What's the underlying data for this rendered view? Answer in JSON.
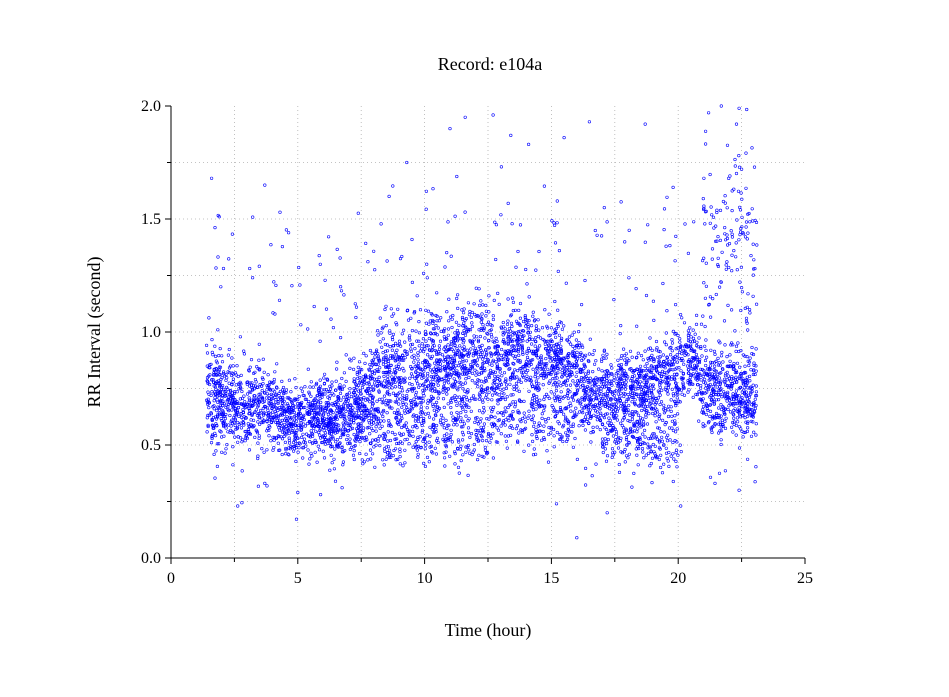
{
  "chart_data": {
    "type": "scatter",
    "title": "Record:  e104a",
    "xlabel": "Time (hour)",
    "ylabel": "RR Interval (second)",
    "xlim": [
      0,
      25
    ],
    "ylim": [
      0.0,
      2.0
    ],
    "x_ticks": [
      "0",
      "5",
      "10",
      "15",
      "20",
      "25"
    ],
    "y_ticks": [
      "0.0",
      "0.5",
      "1.0",
      "1.5",
      "2.0"
    ],
    "x_tick_values": [
      0,
      5,
      10,
      15,
      20,
      25
    ],
    "y_tick_values": [
      0.0,
      0.5,
      1.0,
      1.5,
      2.0
    ],
    "grid": true,
    "marker_color": "#0000ff",
    "marker": "open-circle",
    "x_range_of_data": [
      1.4,
      23.1
    ],
    "trend": [
      {
        "x": 1.4,
        "y": 0.72,
        "spread": 0.14
      },
      {
        "x": 2.0,
        "y": 0.7,
        "spread": 0.15
      },
      {
        "x": 2.5,
        "y": 0.68,
        "spread": 0.12
      },
      {
        "x": 3.0,
        "y": 0.66,
        "spread": 0.1
      },
      {
        "x": 3.5,
        "y": 0.7,
        "spread": 0.12
      },
      {
        "x": 4.0,
        "y": 0.66,
        "spread": 0.1
      },
      {
        "x": 4.5,
        "y": 0.62,
        "spread": 0.12
      },
      {
        "x": 5.0,
        "y": 0.6,
        "spread": 0.1
      },
      {
        "x": 6.0,
        "y": 0.64,
        "spread": 0.1
      },
      {
        "x": 7.0,
        "y": 0.68,
        "spread": 0.11
      },
      {
        "x": 7.8,
        "y": 0.72,
        "spread": 0.12
      },
      {
        "x": 8.0,
        "y": 0.8,
        "spread": 0.15
      },
      {
        "x": 9.0,
        "y": 0.82,
        "spread": 0.15
      },
      {
        "x": 10.0,
        "y": 0.84,
        "spread": 0.16
      },
      {
        "x": 11.0,
        "y": 0.86,
        "spread": 0.16
      },
      {
        "x": 12.0,
        "y": 0.87,
        "spread": 0.16
      },
      {
        "x": 12.6,
        "y": 0.86,
        "spread": 0.15
      },
      {
        "x": 13.5,
        "y": 0.92,
        "spread": 0.13
      },
      {
        "x": 14.5,
        "y": 0.88,
        "spread": 0.13
      },
      {
        "x": 15.5,
        "y": 0.86,
        "spread": 0.12
      },
      {
        "x": 16.0,
        "y": 0.84,
        "spread": 0.12
      },
      {
        "x": 16.3,
        "y": 0.72,
        "spread": 0.13
      },
      {
        "x": 17.0,
        "y": 0.72,
        "spread": 0.12
      },
      {
        "x": 18.0,
        "y": 0.75,
        "spread": 0.12
      },
      {
        "x": 19.0,
        "y": 0.76,
        "spread": 0.12
      },
      {
        "x": 20.0,
        "y": 0.82,
        "spread": 0.12
      },
      {
        "x": 20.6,
        "y": 0.92,
        "spread": 0.1
      },
      {
        "x": 21.0,
        "y": 0.75,
        "spread": 0.14
      },
      {
        "x": 22.0,
        "y": 0.73,
        "spread": 0.13
      },
      {
        "x": 23.1,
        "y": 0.72,
        "spread": 0.12
      }
    ],
    "secondary_clusters": [
      {
        "x_range": [
          6.0,
          12.6
        ],
        "y": 0.55,
        "spread": 0.07
      },
      {
        "x_range": [
          12.6,
          16.0
        ],
        "y": 0.62,
        "spread": 0.07
      },
      {
        "x_range": [
          17.0,
          20.0
        ],
        "y": 0.52,
        "spread": 0.06
      },
      {
        "x_range": [
          21.0,
          23.1
        ],
        "y": 1.4,
        "spread": 0.22
      }
    ],
    "sample_points": [
      {
        "x": 1.6,
        "y": 1.68
      },
      {
        "x": 1.9,
        "y": 1.51
      },
      {
        "x": 3.7,
        "y": 1.65
      },
      {
        "x": 4.3,
        "y": 1.53
      },
      {
        "x": 8.6,
        "y": 1.6
      },
      {
        "x": 9.3,
        "y": 1.75
      },
      {
        "x": 11.0,
        "y": 1.9
      },
      {
        "x": 11.6,
        "y": 1.95
      },
      {
        "x": 12.7,
        "y": 1.96
      },
      {
        "x": 13.4,
        "y": 1.87
      },
      {
        "x": 14.1,
        "y": 1.83
      },
      {
        "x": 15.5,
        "y": 1.86
      },
      {
        "x": 16.5,
        "y": 1.93
      },
      {
        "x": 18.7,
        "y": 1.92
      },
      {
        "x": 19.8,
        "y": 1.64
      },
      {
        "x": 21.2,
        "y": 1.97
      },
      {
        "x": 21.7,
        "y": 2.0
      },
      {
        "x": 22.4,
        "y": 1.99
      },
      {
        "x": 22.3,
        "y": 1.92
      },
      {
        "x": 15.2,
        "y": 0.24
      },
      {
        "x": 16.0,
        "y": 0.09
      },
      {
        "x": 17.2,
        "y": 0.2
      },
      {
        "x": 5.0,
        "y": 0.29
      },
      {
        "x": 3.7,
        "y": 0.33
      },
      {
        "x": 20.1,
        "y": 0.23
      },
      {
        "x": 22.4,
        "y": 0.3
      }
    ]
  }
}
